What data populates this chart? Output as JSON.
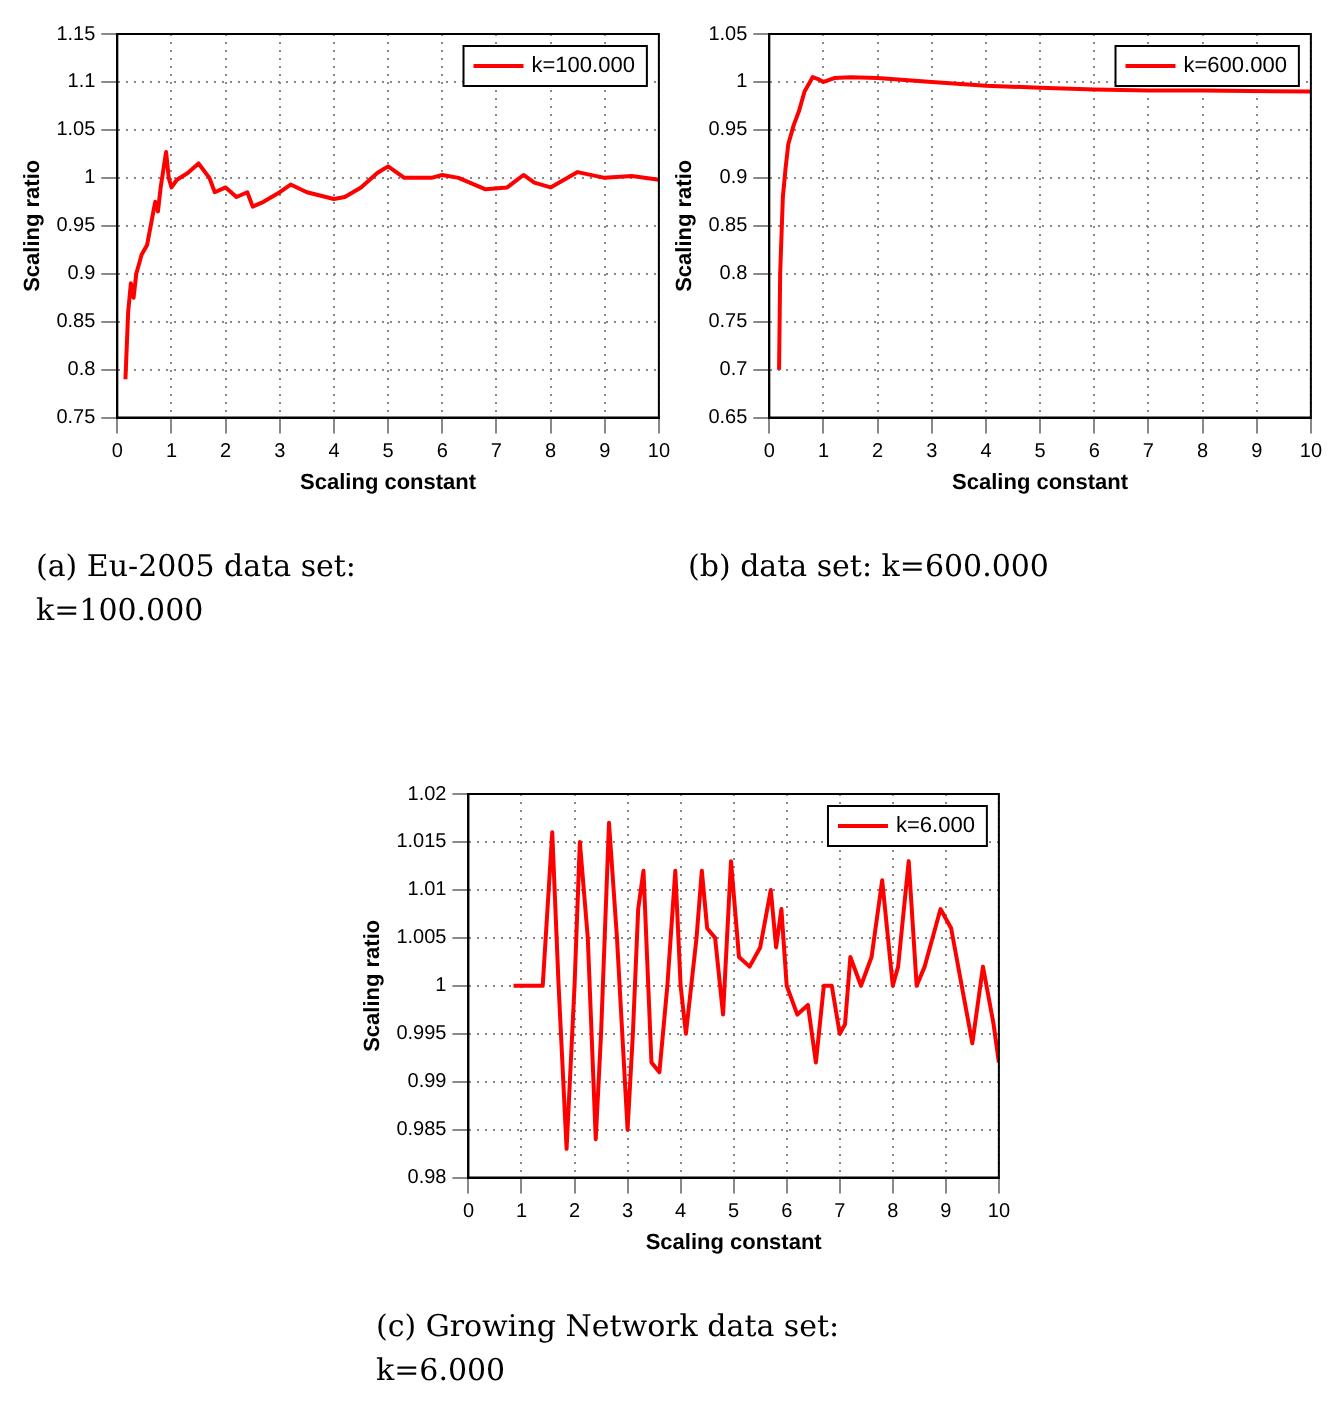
{
  "chart_data": [
    {
      "type": "line",
      "xlabel": "Scaling constant",
      "ylabel": "Scaling ratio",
      "xlim": [
        0,
        10
      ],
      "xticks": [
        0,
        1,
        2,
        3,
        4,
        5,
        6,
        7,
        8,
        9,
        10
      ],
      "ylim": [
        0.75,
        1.15
      ],
      "yticks": [
        0.75,
        0.8,
        0.85,
        0.9,
        0.95,
        1,
        1.05,
        1.1,
        1.15
      ],
      "grid": true,
      "legend": "top right",
      "annotations": [
        "(a) Eu-2005 data set: k=100.000"
      ],
      "series": [
        {
          "name": "k=100.000",
          "color": "#ff0000",
          "x": [
            0.15,
            0.2,
            0.25,
            0.3,
            0.35,
            0.45,
            0.55,
            0.65,
            0.7,
            0.75,
            0.8,
            0.9,
            0.95,
            1.0,
            1.1,
            1.3,
            1.5,
            1.7,
            1.8,
            2.0,
            2.2,
            2.4,
            2.5,
            2.7,
            3.0,
            3.2,
            3.5,
            4.0,
            4.2,
            4.5,
            4.8,
            5.0,
            5.3,
            5.8,
            6.0,
            6.3,
            6.8,
            7.2,
            7.5,
            7.7,
            8.0,
            8.5,
            9.0,
            9.5,
            10
          ],
          "values": [
            0.79,
            0.86,
            0.89,
            0.875,
            0.9,
            0.92,
            0.93,
            0.96,
            0.975,
            0.965,
            0.99,
            1.027,
            1.0,
            0.99,
            0.998,
            1.005,
            1.015,
            1.0,
            0.985,
            0.99,
            0.98,
            0.985,
            0.97,
            0.975,
            0.985,
            0.993,
            0.985,
            0.978,
            0.98,
            0.99,
            1.005,
            1.012,
            1.0,
            1.0,
            1.003,
            1.0,
            0.988,
            0.99,
            1.003,
            0.995,
            0.99,
            1.006,
            1.0,
            1.002,
            0.998
          ]
        }
      ]
    },
    {
      "type": "line",
      "xlabel": "Scaling constant",
      "ylabel": "Scaling ratio",
      "xlim": [
        0,
        10
      ],
      "xticks": [
        0,
        1,
        2,
        3,
        4,
        5,
        6,
        7,
        8,
        9,
        10
      ],
      "ylim": [
        0.65,
        1.05
      ],
      "yticks": [
        0.65,
        0.7,
        0.75,
        0.8,
        0.85,
        0.9,
        0.95,
        1,
        1.05
      ],
      "grid": true,
      "legend": "top right",
      "annotations": [
        "(b) data set: k=600.000"
      ],
      "series": [
        {
          "name": "k=600.000",
          "color": "#ff0000",
          "x": [
            0.18,
            0.2,
            0.25,
            0.3,
            0.35,
            0.45,
            0.55,
            0.65,
            0.75,
            0.8,
            0.9,
            1.0,
            1.2,
            1.5,
            2,
            2.5,
            3,
            4,
            5,
            6,
            7,
            8,
            10
          ],
          "values": [
            0.7,
            0.8,
            0.88,
            0.91,
            0.935,
            0.955,
            0.97,
            0.99,
            1.0,
            1.005,
            1.003,
            1.0,
            1.004,
            1.005,
            1.004,
            1.002,
            1.0,
            0.996,
            0.994,
            0.992,
            0.991,
            0.991,
            0.99
          ]
        }
      ]
    },
    {
      "type": "line",
      "xlabel": "Scaling constant",
      "ylabel": "Scaling ratio",
      "xlim": [
        0,
        10
      ],
      "xticks": [
        0,
        1,
        2,
        3,
        4,
        5,
        6,
        7,
        8,
        9,
        10
      ],
      "ylim": [
        0.98,
        1.02
      ],
      "yticks": [
        0.98,
        0.985,
        0.99,
        0.995,
        1,
        1.005,
        1.01,
        1.015,
        1.02
      ],
      "grid": true,
      "legend": "top right",
      "annotations": [
        "(c) Growing Network data set: k=6.000"
      ],
      "series": [
        {
          "name": "k=6.000",
          "color": "#ff0000",
          "x": [
            0.85,
            1.4,
            1.58,
            1.7,
            1.85,
            2.0,
            2.1,
            2.25,
            2.4,
            2.5,
            2.65,
            2.8,
            3.0,
            3.1,
            3.2,
            3.3,
            3.45,
            3.6,
            3.75,
            3.9,
            4.0,
            4.1,
            4.3,
            4.4,
            4.5,
            4.65,
            4.8,
            4.95,
            5.1,
            5.3,
            5.5,
            5.7,
            5.8,
            5.9,
            6.0,
            6.2,
            6.4,
            6.55,
            6.7,
            6.85,
            7.0,
            7.1,
            7.2,
            7.4,
            7.6,
            7.8,
            8.0,
            8.1,
            8.3,
            8.45,
            8.6,
            8.8,
            8.9,
            9.1,
            9.3,
            9.5,
            9.7,
            9.9,
            10
          ],
          "values": [
            1.0,
            1.0,
            1.016,
            1.0,
            0.983,
            1.0,
            1.015,
            1.005,
            0.984,
            0.995,
            1.017,
            1.005,
            0.985,
            0.995,
            1.008,
            1.012,
            0.992,
            0.991,
            1.0,
            1.012,
            1.0,
            0.995,
            1.005,
            1.012,
            1.006,
            1.005,
            0.997,
            1.013,
            1.003,
            1.002,
            1.004,
            1.01,
            1.004,
            1.008,
            1.0,
            0.997,
            0.998,
            0.992,
            1.0,
            1.0,
            0.995,
            0.996,
            1.003,
            1.0,
            1.003,
            1.011,
            1.0,
            1.002,
            1.013,
            1.0,
            1.002,
            1.006,
            1.008,
            1.006,
            1.0,
            0.994,
            1.002,
            0.996,
            0.992
          ]
        }
      ]
    }
  ]
}
